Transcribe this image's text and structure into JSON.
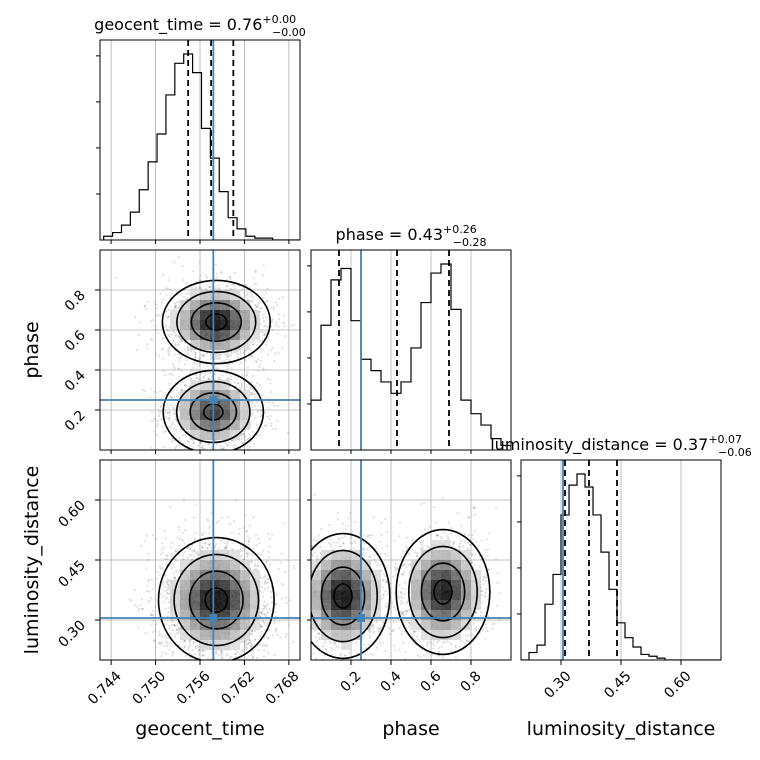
{
  "chart_data": {
    "type": "corner",
    "parameters": [
      {
        "key": "geocent_time",
        "label": "geocent_time",
        "title": "geocent_time = 0.76",
        "title_plus": "+0.00",
        "title_minus": "−0.00",
        "range": [
          0.7425,
          0.7695
        ],
        "ticks": [
          "0.744",
          "0.750",
          "0.756",
          "0.762",
          "0.768"
        ],
        "tick_values": [
          0.744,
          0.75,
          0.756,
          0.762,
          0.768
        ],
        "quantiles": [
          0.7544,
          0.7575,
          0.7605
        ],
        "truth": 0.7578,
        "histogram": {
          "start": 0.743,
          "bin_width": 0.0012,
          "heights": [
            0.02,
            0.04,
            0.08,
            0.15,
            0.27,
            0.42,
            0.57,
            0.78,
            0.95,
            1.0,
            0.9,
            0.6,
            0.44,
            0.26,
            0.12,
            0.06,
            0.02,
            0.01,
            0.01,
            0.0,
            0.0,
            0.0
          ]
        }
      },
      {
        "key": "phase",
        "label": "phase",
        "title": "phase = 0.43",
        "title_plus": "+0.26",
        "title_minus": "−0.28",
        "range": [
          0.0,
          1.0
        ],
        "ticks": [
          "0.2",
          "0.4",
          "0.6",
          "0.8"
        ],
        "tick_values": [
          0.2,
          0.4,
          0.6,
          0.8
        ],
        "quantiles": [
          0.14,
          0.43,
          0.69
        ],
        "truth": 0.25,
        "histogram": {
          "start": 0.0,
          "bin_width": 0.05,
          "heights": [
            0.22,
            0.55,
            0.75,
            0.8,
            0.57,
            0.4,
            0.35,
            0.3,
            0.25,
            0.3,
            0.45,
            0.65,
            0.78,
            0.82,
            0.62,
            0.22,
            0.16,
            0.11,
            0.05,
            0.02
          ]
        }
      },
      {
        "key": "luminosity_distance",
        "label": "luminosity_distance",
        "title": "luminosity_distance = 0.37",
        "title_plus": "+0.07",
        "title_minus": "−0.06",
        "range": [
          0.2,
          0.7
        ],
        "ticks": [
          "0.30",
          "0.45",
          "0.60"
        ],
        "tick_values": [
          0.3,
          0.45,
          0.6
        ],
        "quantiles": [
          0.31,
          0.37,
          0.44
        ],
        "truth": 0.305,
        "histogram": {
          "start": 0.2,
          "bin_width": 0.02,
          "heights": [
            0.0,
            0.04,
            0.08,
            0.3,
            0.46,
            0.78,
            0.94,
            1.0,
            0.93,
            0.78,
            0.58,
            0.38,
            0.2,
            0.12,
            0.07,
            0.03,
            0.02,
            0.01,
            0.0,
            0.0,
            0.0,
            0.0,
            0.0,
            0.0,
            0.0
          ]
        }
      }
    ],
    "joint_modes": {
      "phase_vs_geocent_time": [
        {
          "x": 0.7582,
          "y": 0.64,
          "sx": 0.0028,
          "sy": 0.08,
          "w": 1.0
        },
        {
          "x": 0.7578,
          "y": 0.19,
          "sx": 0.0026,
          "sy": 0.08,
          "w": 0.8
        }
      ],
      "luminosity_distance_vs_geocent_time": [
        {
          "x": 0.7582,
          "y": 0.35,
          "sx": 0.003,
          "sy": 0.06,
          "w": 1.0
        }
      ],
      "luminosity_distance_vs_phase": [
        {
          "x": 0.16,
          "y": 0.36,
          "sx": 0.09,
          "sy": 0.06,
          "w": 1.0
        },
        {
          "x": 0.66,
          "y": 0.37,
          "sx": 0.09,
          "sy": 0.06,
          "w": 0.95
        }
      ]
    },
    "truth_color": "#4682b4",
    "grid": true
  }
}
